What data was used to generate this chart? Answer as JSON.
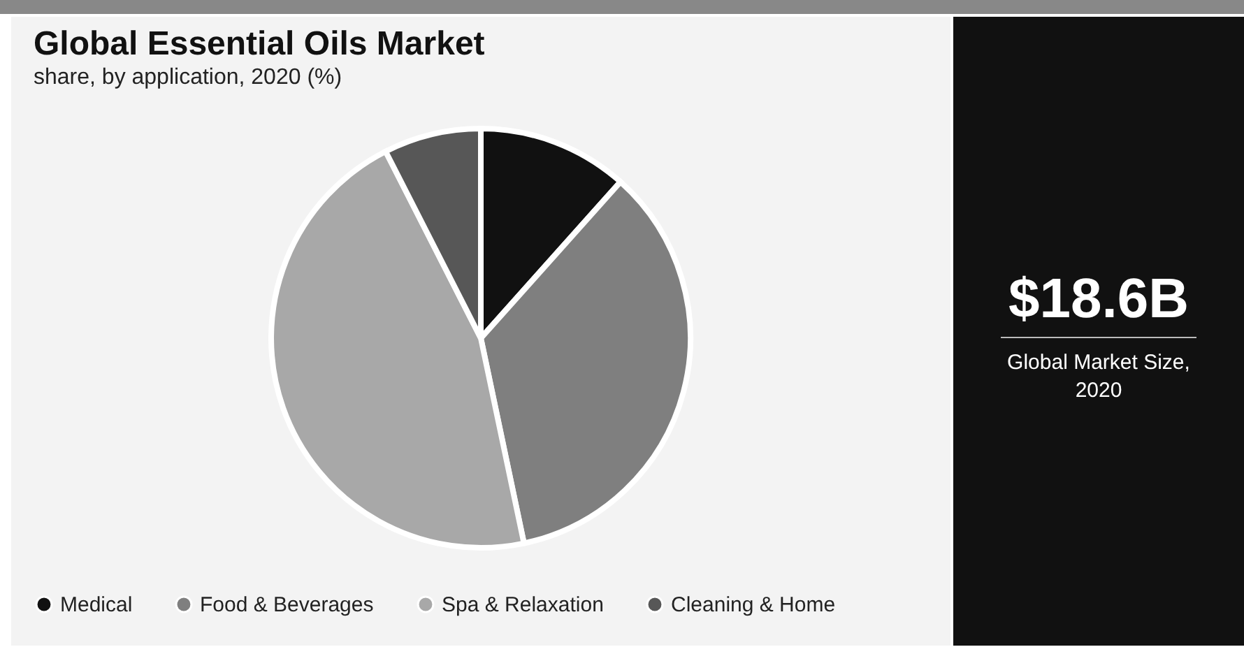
{
  "chart_data": {
    "type": "pie",
    "title": "Global Essential Oils Market",
    "subtitle": "share, by application, 2020 (%)",
    "categories": [
      "Medical",
      "Food & Beverages",
      "Spa & Relaxation",
      "Cleaning & Home"
    ],
    "values": [
      11.6,
      35.1,
      45.8,
      7.5
    ],
    "colors": [
      "#111111",
      "#7f7f7f",
      "#a8a8a8",
      "#575757"
    ],
    "legend": "bottom",
    "annotations": [
      "$18.6B",
      "Global Market Size, 2020"
    ]
  }
}
